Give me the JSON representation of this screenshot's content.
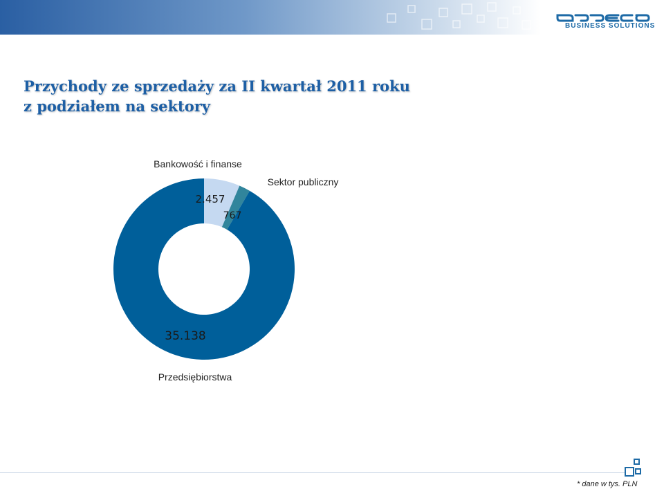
{
  "header": {
    "logo_text": "BUSINESS SOLUTIONS",
    "brand_color": "#1d6aa6"
  },
  "slide": {
    "title_line1": "Przychody ze sprzedaży za II kwartał 2011 roku",
    "title_line2": "z podziałem na sektory",
    "title_color": "#1d5fa5"
  },
  "chart_data": {
    "type": "pie",
    "style": "donut",
    "slices": [
      {
        "label": "Bankowość i finanse",
        "value": 2457,
        "value_label": "2.457",
        "color": "#c5d9f1"
      },
      {
        "label": "Sektor publiczny",
        "value": 767,
        "value_label": "767",
        "color": "#31859c"
      },
      {
        "label": "Przedsiębiorstwa",
        "value": 35138,
        "value_label": "35.138",
        "color": "#005f9a"
      }
    ]
  },
  "footer": {
    "note": "* dane w tys. PLN"
  }
}
